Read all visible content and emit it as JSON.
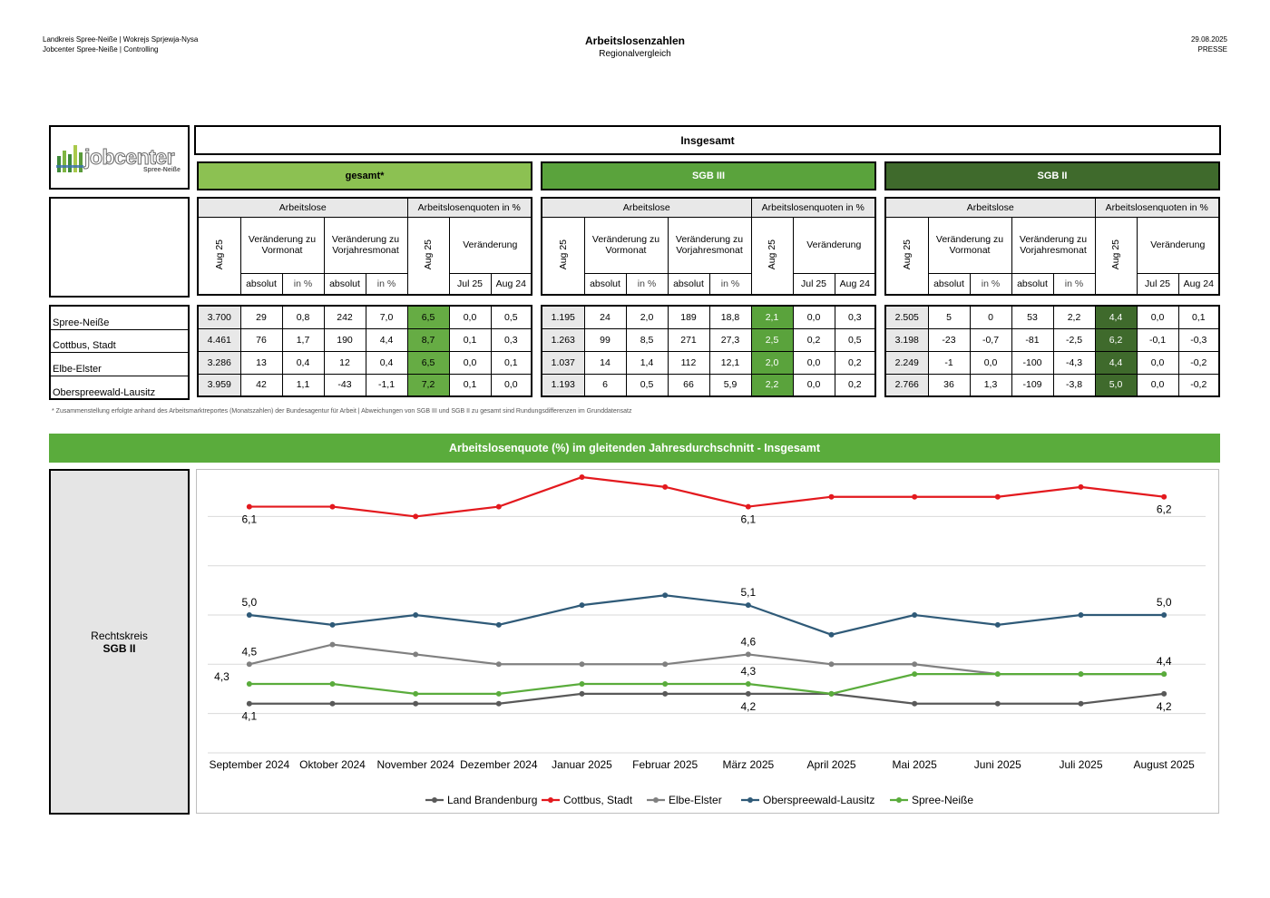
{
  "header": {
    "left_line1": "Landkreis Spree-Neiße | Wokrejs Sprjewja-Nysa",
    "left_line2": "Jobcenter Spree-Neiße | Controlling",
    "title": "Arbeitslosenzahlen",
    "subtitle": "Regionalvergleich",
    "date": "29.08.2025",
    "tag": "PRESSE"
  },
  "logo": {
    "text": "jobcenter",
    "sub": "Spree-Neiße"
  },
  "table": {
    "title": "Insgesamt",
    "groups": [
      {
        "label": "gesamt*",
        "color": "#8cc152",
        "quote_color": "#66ac44"
      },
      {
        "label": "SGB III",
        "color": "#5aa33c",
        "quote_color": "#5aa33c"
      },
      {
        "label": "SGB II",
        "color": "#3f6a2c",
        "quote_color": "#3f6a2c"
      }
    ],
    "col_headers": {
      "arbeitslose": "Arbeitslose",
      "quoten": "Arbeitslosenquoten in %",
      "month": "Aug 25",
      "vormonat": "Veränderung zu Vormonat",
      "vorjahr": "Veränderung zu Vorjahresmonat",
      "veraenderung": "Veränderung",
      "absolut": "absolut",
      "in_pct": "in %",
      "jul25": "Jul 25",
      "aug24": "Aug 24"
    },
    "rows": [
      {
        "name": "Spree-Neiße",
        "gesamt": [
          "3.700",
          "29",
          "0,8",
          "242",
          "7,0",
          "6,5",
          "0,0",
          "0,5"
        ],
        "sgb3": [
          "1.195",
          "24",
          "2,0",
          "189",
          "18,8",
          "2,1",
          "0,0",
          "0,3"
        ],
        "sgb2": [
          "2.505",
          "5",
          "0",
          "53",
          "2,2",
          "4,4",
          "0,0",
          "0,1"
        ]
      },
      {
        "name": "Cottbus, Stadt",
        "gesamt": [
          "4.461",
          "76",
          "1,7",
          "190",
          "4,4",
          "8,7",
          "0,1",
          "0,3"
        ],
        "sgb3": [
          "1.263",
          "99",
          "8,5",
          "271",
          "27,3",
          "2,5",
          "0,2",
          "0,5"
        ],
        "sgb2": [
          "3.198",
          "-23",
          "-0,7",
          "-81",
          "-2,5",
          "6,2",
          "-0,1",
          "-0,3"
        ]
      },
      {
        "name": "Elbe-Elster",
        "gesamt": [
          "3.286",
          "13",
          "0,4",
          "12",
          "0,4",
          "6,5",
          "0,0",
          "0,1"
        ],
        "sgb3": [
          "1.037",
          "14",
          "1,4",
          "112",
          "12,1",
          "2,0",
          "0,0",
          "0,2"
        ],
        "sgb2": [
          "2.249",
          "-1",
          "0,0",
          "-100",
          "-4,3",
          "4,4",
          "0,0",
          "-0,2"
        ]
      },
      {
        "name": "Oberspreewald-Lausitz",
        "gesamt": [
          "3.959",
          "42",
          "1,1",
          "-43",
          "-1,1",
          "7,2",
          "0,1",
          "0,0"
        ],
        "sgb3": [
          "1.193",
          "6",
          "0,5",
          "66",
          "5,9",
          "2,2",
          "0,0",
          "0,2"
        ],
        "sgb2": [
          "2.766",
          "36",
          "1,3",
          "-109",
          "-3,8",
          "5,0",
          "0,0",
          "-0,2"
        ]
      }
    ],
    "footnote": "* Zusammenstellung erfolgte anhand des Arbeitsmarktreportes (Monatszahlen) der Bundesagentur für Arbeit | Abweichungen von SGB III und SGB II zu gesamt sind Rundungsdifferenzen im Grunddatensatz"
  },
  "chart_section": {
    "banner": "Arbeitslosenquote (%) im gleitenden Jahresdurchschnitt - Insgesamt",
    "panel_line1": "Rechtskreis",
    "panel_line2": "SGB II"
  },
  "chart_data": {
    "type": "line",
    "title": "",
    "xlabel": "",
    "ylabel": "",
    "categories": [
      "September 2024",
      "Oktober 2024",
      "November 2024",
      "Dezember 2024",
      "Januar 2025",
      "Februar 2025",
      "März 2025",
      "April 2025",
      "Mai 2025",
      "Juni 2025",
      "Juli 2025",
      "August 2025"
    ],
    "ylim": [
      3.6,
      6.4
    ],
    "gridlines": [
      3.9,
      4.2,
      4.5,
      5.0,
      5.5,
      6.0,
      6.3
    ],
    "legend_position": "bottom",
    "series": [
      {
        "name": "Land Brandenburg",
        "color": "#595959",
        "values": [
          4.1,
          4.1,
          4.1,
          4.1,
          4.2,
          4.2,
          4.2,
          4.2,
          4.1,
          4.1,
          4.1,
          4.2
        ],
        "labels": [
          {
            "i": 0,
            "text": "4,1",
            "pos": "below"
          },
          {
            "i": 6,
            "text": "4,2",
            "pos": "below"
          },
          {
            "i": 11,
            "text": "4,2",
            "pos": "below"
          }
        ]
      },
      {
        "name": "Cottbus, Stadt",
        "color": "#e3191e",
        "values": [
          6.1,
          6.1,
          6.0,
          6.1,
          6.4,
          6.3,
          6.1,
          6.2,
          6.2,
          6.2,
          6.3,
          6.2
        ],
        "labels": [
          {
            "i": 0,
            "text": "6,1",
            "pos": "below"
          },
          {
            "i": 6,
            "text": "6,1",
            "pos": "below"
          },
          {
            "i": 11,
            "text": "6,2",
            "pos": "below"
          }
        ]
      },
      {
        "name": "Elbe-Elster",
        "color": "#808080",
        "values": [
          4.5,
          4.7,
          4.6,
          4.5,
          4.5,
          4.5,
          4.6,
          4.5,
          4.5,
          4.4,
          4.4,
          4.4
        ],
        "labels": [
          {
            "i": 0,
            "text": "4,5",
            "pos": "above"
          },
          {
            "i": 6,
            "text": "4,6",
            "pos": "above"
          },
          {
            "i": 11,
            "text": "4,4",
            "pos": "above"
          }
        ]
      },
      {
        "name": "Oberspreewald-Lausitz",
        "color": "#2f5a78",
        "values": [
          5.0,
          4.9,
          5.0,
          4.9,
          5.1,
          5.2,
          5.1,
          4.8,
          5.0,
          4.9,
          5.0,
          5.0
        ],
        "labels": [
          {
            "i": 0,
            "text": "5,0",
            "pos": "above"
          },
          {
            "i": 6,
            "text": "5,1",
            "pos": "above"
          },
          {
            "i": 11,
            "text": "5,0",
            "pos": "above"
          }
        ]
      },
      {
        "name": "Spree-Neiße",
        "color": "#5aac3c",
        "values": [
          4.3,
          4.3,
          4.2,
          4.2,
          4.3,
          4.3,
          4.3,
          4.2,
          4.4,
          4.4,
          4.4,
          4.4
        ],
        "labels": [
          {
            "i": 0,
            "text": "4,3",
            "pos": "left"
          },
          {
            "i": 6,
            "text": "4,3",
            "pos": "above"
          }
        ]
      }
    ]
  }
}
